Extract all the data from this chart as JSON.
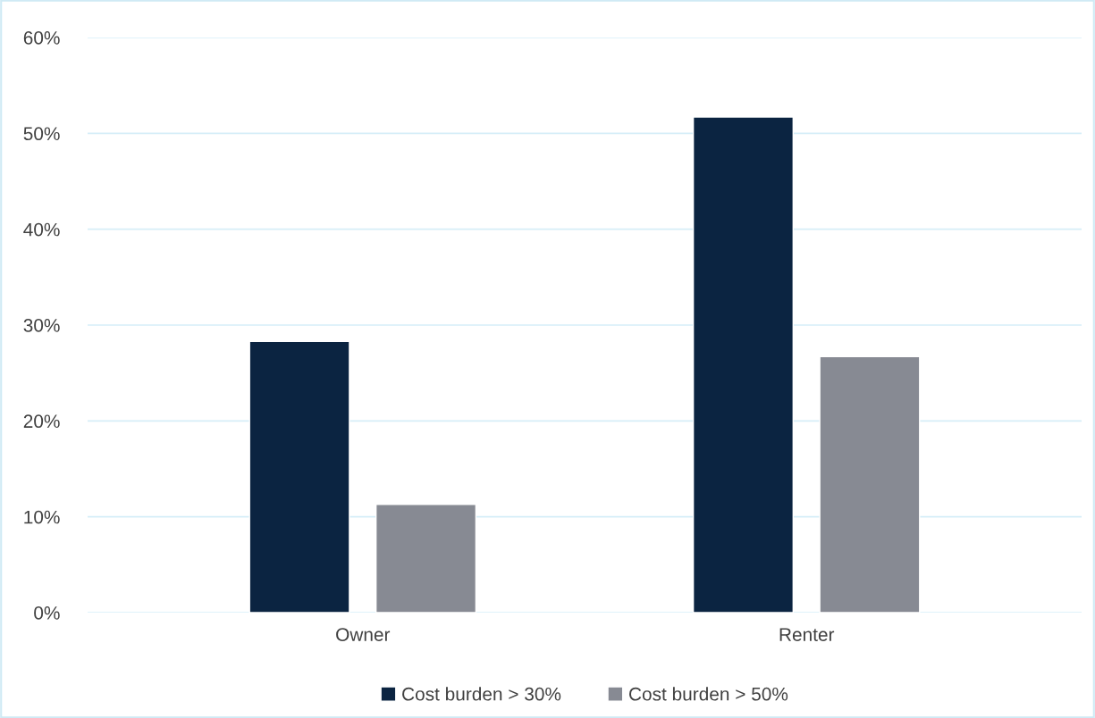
{
  "chart_data": {
    "type": "bar",
    "categories": [
      "Owner",
      "Renter"
    ],
    "series": [
      {
        "name": "Cost burden > 30%",
        "color": "#0b2441",
        "values": [
          28.3,
          51.7
        ]
      },
      {
        "name": "Cost burden > 50%",
        "color": "#878a93",
        "values": [
          11.3,
          26.7
        ]
      }
    ],
    "ylim": [
      0,
      60
    ],
    "yticks": [
      {
        "value": 0,
        "label": "0%"
      },
      {
        "value": 10,
        "label": "10%"
      },
      {
        "value": 20,
        "label": "20%"
      },
      {
        "value": 30,
        "label": "30%"
      },
      {
        "value": 40,
        "label": "40%"
      },
      {
        "value": 50,
        "label": "50%"
      },
      {
        "value": 60,
        "label": "60%"
      }
    ],
    "grid": "y",
    "legend": "bottom"
  }
}
